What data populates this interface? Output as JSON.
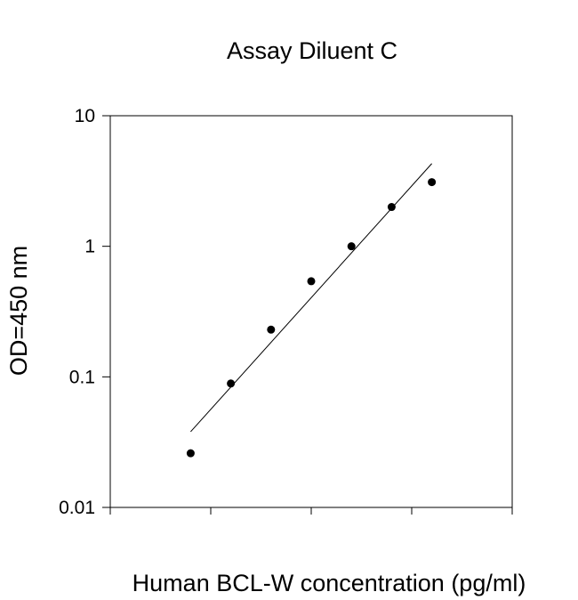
{
  "chart_data": {
    "type": "scatter",
    "title": "Assay Diluent C",
    "xlabel": "Human BCL-W concentration (pg/ml)",
    "ylabel": "OD=450 nm",
    "y_scale": "log",
    "ylim": [
      0.01,
      10
    ],
    "y_ticks": [
      {
        "value": 0.01,
        "label": "0.01"
      },
      {
        "value": 0.1,
        "label": "0.1"
      },
      {
        "value": 1,
        "label": "1"
      },
      {
        "value": 10,
        "label": "10"
      }
    ],
    "x_tick_labels": "none",
    "series": [
      {
        "points": [
          {
            "x": 1,
            "y": 0.026
          },
          {
            "x": 2,
            "y": 0.089
          },
          {
            "x": 3,
            "y": 0.23
          },
          {
            "x": 4,
            "y": 0.54
          },
          {
            "x": 5,
            "y": 1.0
          },
          {
            "x": 6,
            "y": 2.0
          },
          {
            "x": 7,
            "y": 3.1
          }
        ]
      }
    ],
    "fit_line": {
      "x": [
        1,
        7
      ],
      "y": [
        0.038,
        4.3
      ]
    },
    "grid": false,
    "legend": "none",
    "colors": {
      "marker": "#000000",
      "line": "#000000",
      "frame": "#000000"
    }
  }
}
